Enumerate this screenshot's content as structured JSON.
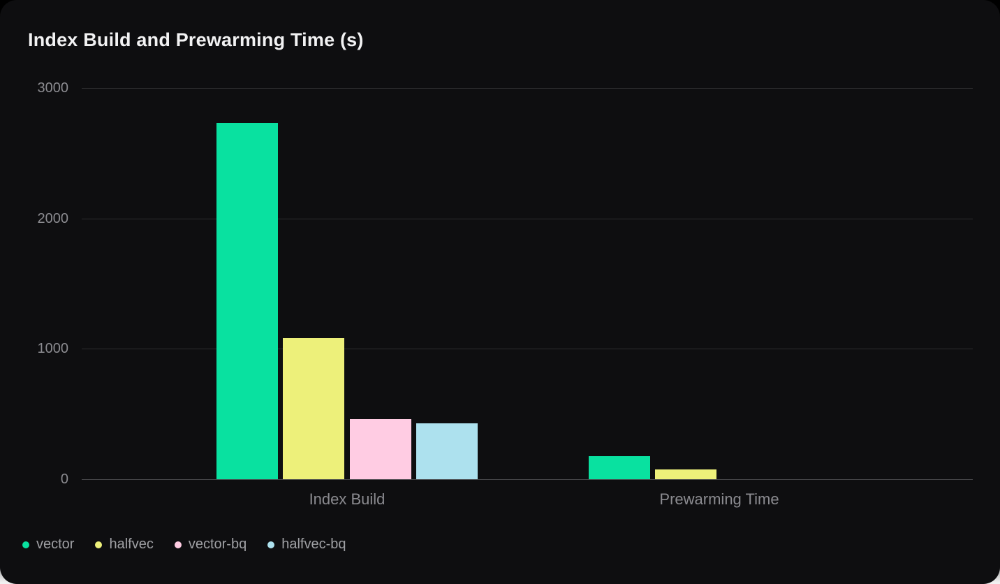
{
  "card": {
    "title": "Index Build and Prewarming Time (s)"
  },
  "chart_data": {
    "type": "bar",
    "title": "Index Build and Prewarming Time (s)",
    "categories": [
      "Index Build",
      "Prewarming Time"
    ],
    "series": [
      {
        "name": "vector",
        "color": "#09e1a0",
        "values": [
          2730,
          175
        ]
      },
      {
        "name": "halfvec",
        "color": "#edf07a",
        "values": [
          1080,
          75
        ]
      },
      {
        "name": "vector-bq",
        "color": "#ffcce3",
        "values": [
          460,
          0
        ]
      },
      {
        "name": "halfvec-bq",
        "color": "#ade1ee",
        "values": [
          430,
          0
        ]
      }
    ],
    "xlabel": "",
    "ylabel": "",
    "ylim": [
      0,
      3000
    ],
    "yticks": [
      0,
      1000,
      2000,
      3000
    ],
    "grid": true,
    "legend_position": "bottom-left",
    "unit": "s",
    "theme": {
      "card_background": "#0e0e10",
      "title_color": "#f2f2f3",
      "axis_label_color": "#8b8b90",
      "legend_label_color": "#9fa0a4",
      "gridline_color": "#2d2d2f",
      "zero_line_color": "#48484b"
    }
  }
}
